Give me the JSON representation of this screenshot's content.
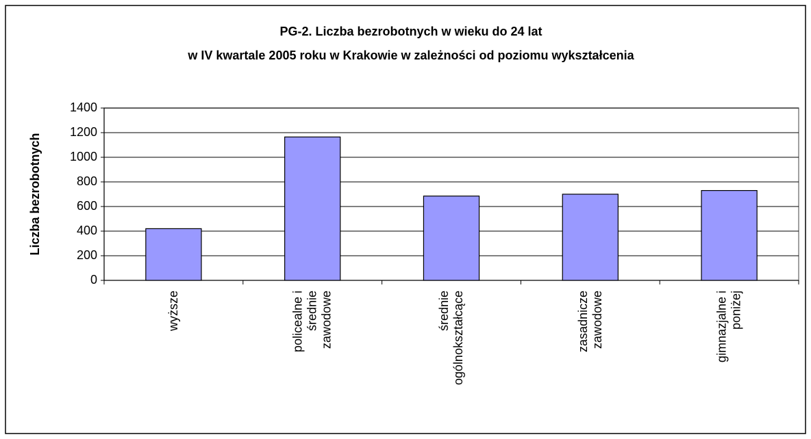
{
  "chart_data": {
    "type": "bar",
    "title": "PG-2. Liczba bezrobotnych w wieku do 24 lat",
    "subtitle": "w IV kwartale 2005 roku w Krakowie w zależności od poziomu wykształcenia",
    "y_label": "Liczba bezrobotnych",
    "categories": [
      "wyższe",
      "policealne i\nśrednie\nzawodowe",
      "średnie\nogólnokształcące",
      "zasadnicze\nzawodowe",
      "gimnazjalne i\nponiżej"
    ],
    "values": [
      420,
      1165,
      685,
      700,
      730
    ],
    "color": "#9999ff",
    "ylim": [
      0,
      1400
    ],
    "yticks": [
      0,
      200,
      400,
      600,
      800,
      1000,
      1200,
      1400
    ],
    "grid": true
  }
}
